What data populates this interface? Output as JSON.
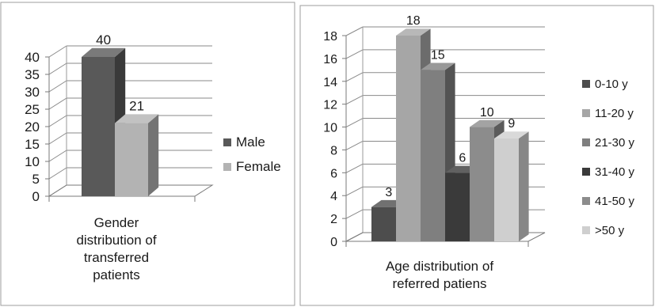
{
  "chart_data": [
    {
      "type": "bar",
      "title": "",
      "xlabel": "Gender distribution of transferred patients",
      "xlabel_lines": [
        "Gender",
        "distribution of",
        "transferred",
        "patients"
      ],
      "ylabel": "",
      "ylim": [
        0,
        40
      ],
      "yticks": [
        "0",
        "5",
        "10",
        "15",
        "20",
        "25",
        "30",
        "35",
        "40"
      ],
      "grid": true,
      "legend_position": "right",
      "series": [
        {
          "name": "Male",
          "values": [
            40
          ],
          "color": "#595959"
        },
        {
          "name": "Female",
          "values": [
            21
          ],
          "color": "#b3b3b3"
        }
      ],
      "data_labels": [
        "40",
        "21"
      ]
    },
    {
      "type": "bar",
      "title": "",
      "xlabel": "Age distribution of referred patiens",
      "xlabel_lines": [
        "Age distribution of",
        "referred patiens"
      ],
      "ylabel": "",
      "ylim": [
        0,
        18
      ],
      "yticks": [
        "0",
        "2",
        "4",
        "6",
        "8",
        "10",
        "12",
        "14",
        "16",
        "18"
      ],
      "grid": true,
      "legend_position": "right",
      "series": [
        {
          "name": "0-10 y",
          "values": [
            3
          ],
          "color": "#4d4d4d"
        },
        {
          "name": "11-20 y",
          "values": [
            18
          ],
          "color": "#a6a6a6"
        },
        {
          "name": "21-30 y",
          "values": [
            15
          ],
          "color": "#7f7f7f"
        },
        {
          "name": "31-40 y",
          "values": [
            6
          ],
          "color": "#3a3a3a"
        },
        {
          "name": "41-50 y",
          "values": [
            10
          ],
          "color": "#8c8c8c"
        },
        {
          "name": ">50 y",
          "values": [
            9
          ],
          "color": "#cfcfcf"
        }
      ],
      "data_labels": [
        "3",
        "18",
        "15",
        "6",
        "10",
        "9"
      ]
    }
  ]
}
